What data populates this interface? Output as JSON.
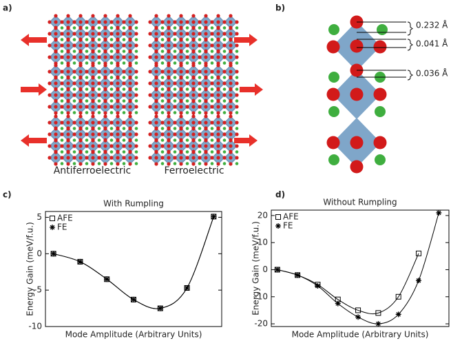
{
  "panel_labels": [
    "a)",
    "b)",
    "c)",
    "d)"
  ],
  "structure": {
    "labels": [
      "Antiferroelectric",
      "Ferroelectric"
    ],
    "distances": [
      "0.232 Å",
      "0.041 Å",
      "0.036 Å"
    ]
  },
  "chart_data": [
    {
      "type": "line",
      "title": "With Rumpling",
      "x_label": "Mode Amplitude (Arbitrary Units)",
      "y_label": "Energy Gain (meV/f.u.)",
      "xlim": [
        -0.3,
        6.3
      ],
      "ylim": [
        -10,
        5.8
      ],
      "yticks": [
        5,
        0,
        -5,
        -10
      ],
      "legend": "upper left",
      "series": [
        {
          "name": "AFE",
          "marker": "square",
          "color": "#000000",
          "x": [
            0,
            1,
            2,
            3,
            4,
            5,
            6
          ],
          "values": [
            0,
            -1.1,
            -3.5,
            -6.3,
            -7.5,
            -4.7,
            5.1
          ]
        },
        {
          "name": "FE",
          "marker": "star",
          "color": "#000000",
          "x": [
            0,
            1,
            2,
            3,
            4,
            5,
            6
          ],
          "values": [
            0,
            -1.1,
            -3.5,
            -6.3,
            -7.5,
            -4.7,
            5.1
          ]
        }
      ]
    },
    {
      "type": "line",
      "title": "Without Rumpling",
      "x_label": "Mode Amplitude (Arbitrary Units)",
      "y_label": "Energy Gain (meV/f.u.)",
      "xlim": [
        -0.3,
        8.5
      ],
      "ylim": [
        -21,
        22
      ],
      "yticks": [
        20,
        10,
        0,
        -10,
        -20
      ],
      "legend": "upper left",
      "series": [
        {
          "name": "AFE",
          "marker": "square",
          "color": "#000000",
          "x": [
            0,
            1,
            2,
            3,
            4,
            5,
            6,
            7
          ],
          "values": [
            0,
            -2,
            -5.5,
            -11,
            -15,
            -16,
            -10,
            6
          ]
        },
        {
          "name": "FE",
          "marker": "star",
          "color": "#000000",
          "x": [
            0,
            1,
            2,
            3,
            4,
            5,
            6,
            7,
            8
          ],
          "values": [
            0,
            -2,
            -6,
            -12.5,
            -17.5,
            -20,
            -16.5,
            -4,
            21
          ]
        }
      ]
    }
  ]
}
